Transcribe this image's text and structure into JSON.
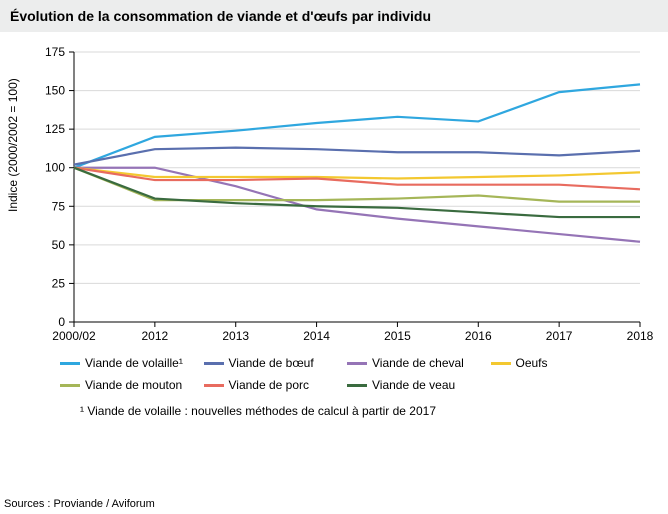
{
  "title": "Évolution de la consommation de viande et d'œufs par individu",
  "y_axis_label": "Indice (2000/2002 = 100)",
  "footnote": "¹ Viande de volaille : nouvelles méthodes de calcul à partir de 2017",
  "sources": "Sources : Proviande / Aviforum",
  "chart": {
    "type": "line",
    "background_color": "#ffffff",
    "grid_color": "#d9d9d9",
    "axis_color": "#000000",
    "ylim": [
      0,
      175
    ],
    "ytick_step": 25,
    "categories": [
      "2000/02",
      "2012",
      "2013",
      "2014",
      "2015",
      "2016",
      "2017",
      "2018"
    ],
    "series": [
      {
        "name": "Viande de volaille¹",
        "color": "#2fa7df",
        "values": [
          100,
          120,
          124,
          129,
          133,
          130,
          149,
          154
        ]
      },
      {
        "name": "Viande de bœuf",
        "color": "#5a6fae",
        "values": [
          102,
          112,
          113,
          112,
          110,
          110,
          108,
          111
        ]
      },
      {
        "name": "Viande de cheval",
        "color": "#9574b6",
        "values": [
          100,
          100,
          88,
          73,
          67,
          62,
          57,
          52
        ]
      },
      {
        "name": "Oeufs",
        "color": "#f3c830",
        "values": [
          100,
          94,
          94,
          94,
          93,
          94,
          95,
          97
        ]
      },
      {
        "name": "Viande de mouton",
        "color": "#a5b658",
        "values": [
          100,
          79,
          79,
          79,
          80,
          82,
          78,
          78
        ]
      },
      {
        "name": "Viande de porc",
        "color": "#e86b5f",
        "values": [
          100,
          92,
          92,
          93,
          89,
          89,
          89,
          86
        ]
      },
      {
        "name": "Viande de veau",
        "color": "#3a6b3f",
        "values": [
          100,
          80,
          77,
          75,
          74,
          71,
          68,
          68
        ]
      }
    ],
    "label_fontsize": 12,
    "title_fontsize": 14,
    "line_width": 2.2
  }
}
